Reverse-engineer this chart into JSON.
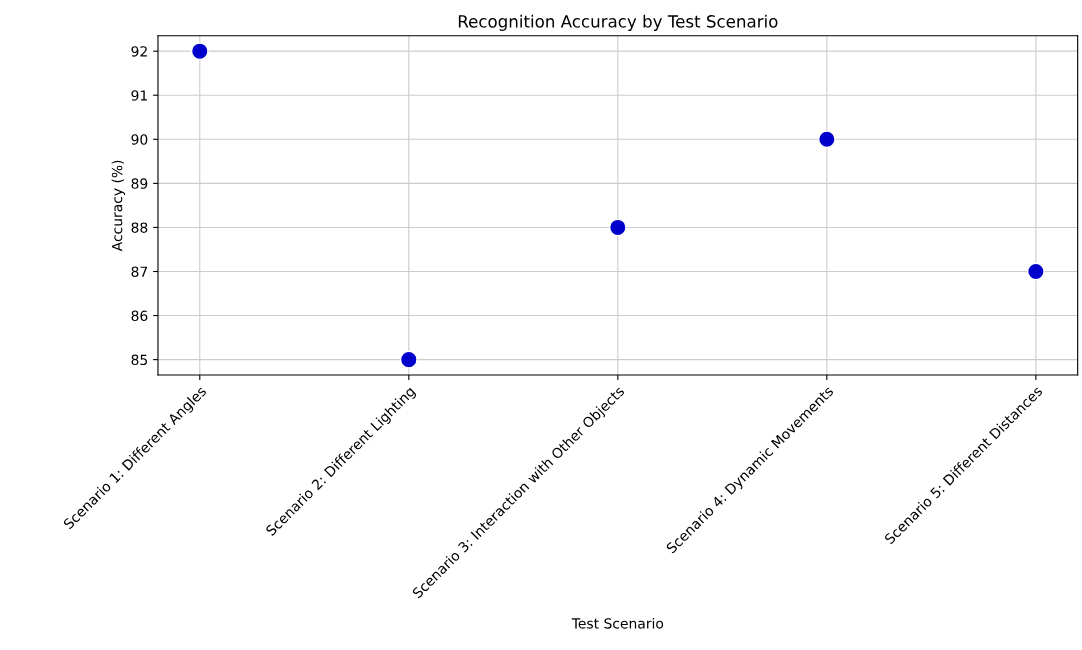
{
  "chart_data": {
    "type": "scatter",
    "title": "Recognition Accuracy by Test Scenario",
    "xlabel": "Test Scenario",
    "ylabel": "Accuracy (%)",
    "categories": [
      "Scenario 1: Different Angles",
      "Scenario 2: Different Lighting",
      "Scenario 3: Interaction with Other Objects",
      "Scenario 4: Dynamic Movements",
      "Scenario 5: Different Distances"
    ],
    "series": [
      {
        "color": "#0000cc",
        "values": [
          92,
          85,
          88,
          90,
          87
        ]
      }
    ],
    "ylim": [
      84.65,
      92.35
    ],
    "yticks": [
      85,
      86,
      87,
      88,
      89,
      90,
      91,
      92
    ],
    "grid": true,
    "marker": "circle"
  }
}
